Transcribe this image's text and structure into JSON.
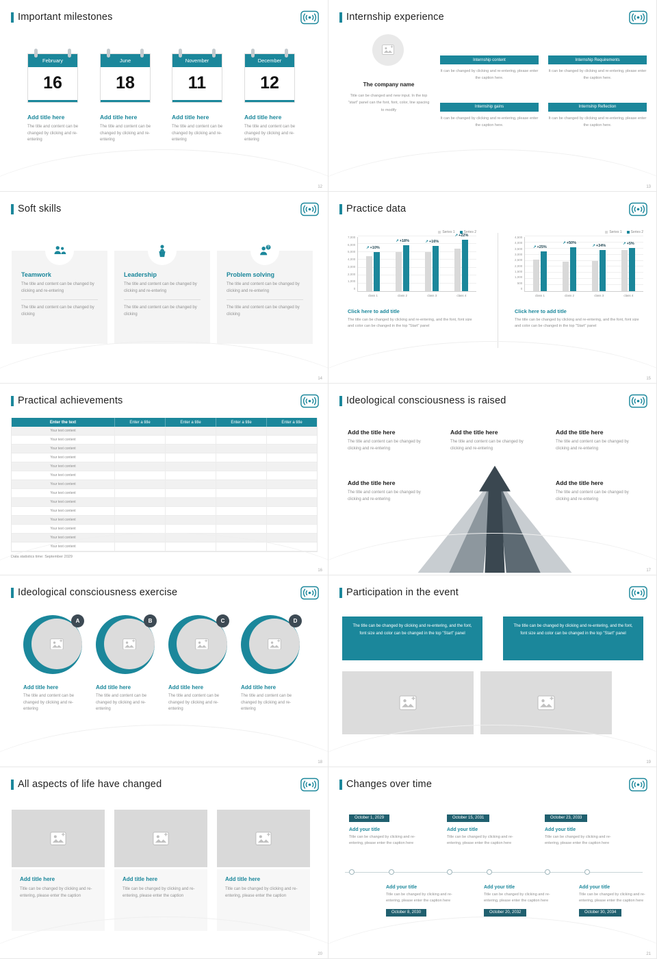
{
  "theme": {
    "accent": "#1b879b",
    "series_gray": "#d9d9d9",
    "badge_dark": "#3d4a54",
    "timeline_chip": "#20606f"
  },
  "chart_data": [
    {
      "type": "bar",
      "categories": [
        "class 1",
        "class 2",
        "class 3",
        "class 4"
      ],
      "series": [
        {
          "name": "Series 1",
          "color": "#d9d9d9",
          "values": [
            4500,
            5000,
            5000,
            5400
          ]
        },
        {
          "name": "Series 2",
          "color": "#1b879b",
          "values": [
            4950,
            5900,
            5800,
            6600
          ]
        }
      ],
      "growth_labels": [
        "+10%",
        "+18%",
        "+16%",
        "+22%"
      ],
      "ylim": [
        0,
        7000
      ],
      "ytick_step": 1000,
      "legend_position": "top-right",
      "grid": true
    },
    {
      "type": "bar",
      "categories": [
        "class 1",
        "class 2",
        "class 3",
        "class 4"
      ],
      "series": [
        {
          "name": "Series 1",
          "color": "#d9d9d9",
          "values": [
            2600,
            2400,
            2500,
            3400
          ]
        },
        {
          "name": "Series 2",
          "color": "#1b879b",
          "values": [
            3250,
            3600,
            3350,
            3570
          ]
        }
      ],
      "growth_labels": [
        "+25%",
        "+50%",
        "+34%",
        "+5%"
      ],
      "ylim": [
        0,
        4500
      ],
      "ytick_step": 500,
      "legend_position": "top-right",
      "grid": true
    }
  ],
  "slides": [
    {
      "title": "Important milestones",
      "page": "12",
      "items": [
        {
          "month": "February",
          "day": "16",
          "item_title": "Add title here",
          "caption": "The title and content can be changed by clicking and re-entering"
        },
        {
          "month": "June",
          "day": "18",
          "item_title": "Add title here",
          "caption": "The title and content can be changed by clicking and re-entering"
        },
        {
          "month": "November",
          "day": "11",
          "item_title": "Add title here",
          "caption": "The title and content can be changed by clicking and re-entering"
        },
        {
          "month": "December",
          "day": "12",
          "item_title": "Add title here",
          "caption": "The title and content can be changed by clicking and re-entering"
        }
      ]
    },
    {
      "title": "Internship experience",
      "page": "13",
      "company": {
        "name": "The company name",
        "caption": "Title can be changed and new input. In the top \"start\" panel can the font, font, color, line spacing to modify"
      },
      "boxes": [
        {
          "label": "Internship content",
          "caption": "It can be changed by clicking and re-entering, please enter the caption here."
        },
        {
          "label": "Internship Requirements",
          "caption": "It can be changed by clicking and re-entering, please enter the caption here."
        },
        {
          "label": "Internship gains",
          "caption": "It can be changed by clicking and re-entering, please enter the caption here."
        },
        {
          "label": "Internship Reflection",
          "caption": "It can be changed by clicking and re-entering, please enter the caption here."
        }
      ]
    },
    {
      "title": "Soft skills",
      "page": "14",
      "cards": [
        {
          "name": "Teamwork",
          "caption1": "The title and content can be changed by clicking and re-entering",
          "caption2": "The title and content can be changed by clicking"
        },
        {
          "name": "Leadership",
          "caption1": "The title and content can be changed by clicking and re-entering",
          "caption2": "The title and content can be changed by clicking"
        },
        {
          "name": "Problem solving",
          "caption1": "The title and content can be changed by clicking and re-entering",
          "caption2": "The title and content can be changed by clicking"
        }
      ]
    },
    {
      "title": "Practice data",
      "page": "15",
      "link_label": "Click here to add title",
      "caption": "The title can be changed by clicking and re-entering, and the font, font size and color can be changed in the top \"Start\" panel"
    },
    {
      "title": "Practical achievements",
      "page": "16",
      "table": {
        "header_first": "Enter the text",
        "header_rest": [
          "Enter a title",
          "Enter a title",
          "Enter a title",
          "Enter a title"
        ],
        "row_text": "Your text content",
        "row_count": 14
      },
      "note": "Data statistics time: September 2029"
    },
    {
      "title": "Ideological consciousness is raised",
      "page": "17",
      "block_title": "Add the title here",
      "block_caption": "The title and content can be changed by clicking and re-entering"
    },
    {
      "title": "Ideological consciousness exercise",
      "page": "18",
      "letters": [
        "A",
        "B",
        "C",
        "D"
      ],
      "item_title": "Add title here",
      "caption": "The title and content can be changed by clicking and re-entering"
    },
    {
      "title": "Participation in the event",
      "page": "19",
      "box_text": "The title can be changed by clicking and re-entering, and the font, font size and color can be changed in the top \"Start\" panel"
    },
    {
      "title": "All aspects of life have changed",
      "page": "20",
      "item_title": "Add title here",
      "caption": "Title can be changed by clicking and re-entering, please enter the caption"
    },
    {
      "title": "Changes over time",
      "page": "21",
      "item_title": "Add your title",
      "caption": "Title can be changed by clicking and re-entering, please enter the caption here",
      "dates_top": [
        "October 1, 2029",
        "October 15, 2031",
        "October 23, 2033"
      ],
      "dates_bottom": [
        "October 8, 2030",
        "October 20, 2032",
        "October 30, 2034"
      ]
    }
  ]
}
